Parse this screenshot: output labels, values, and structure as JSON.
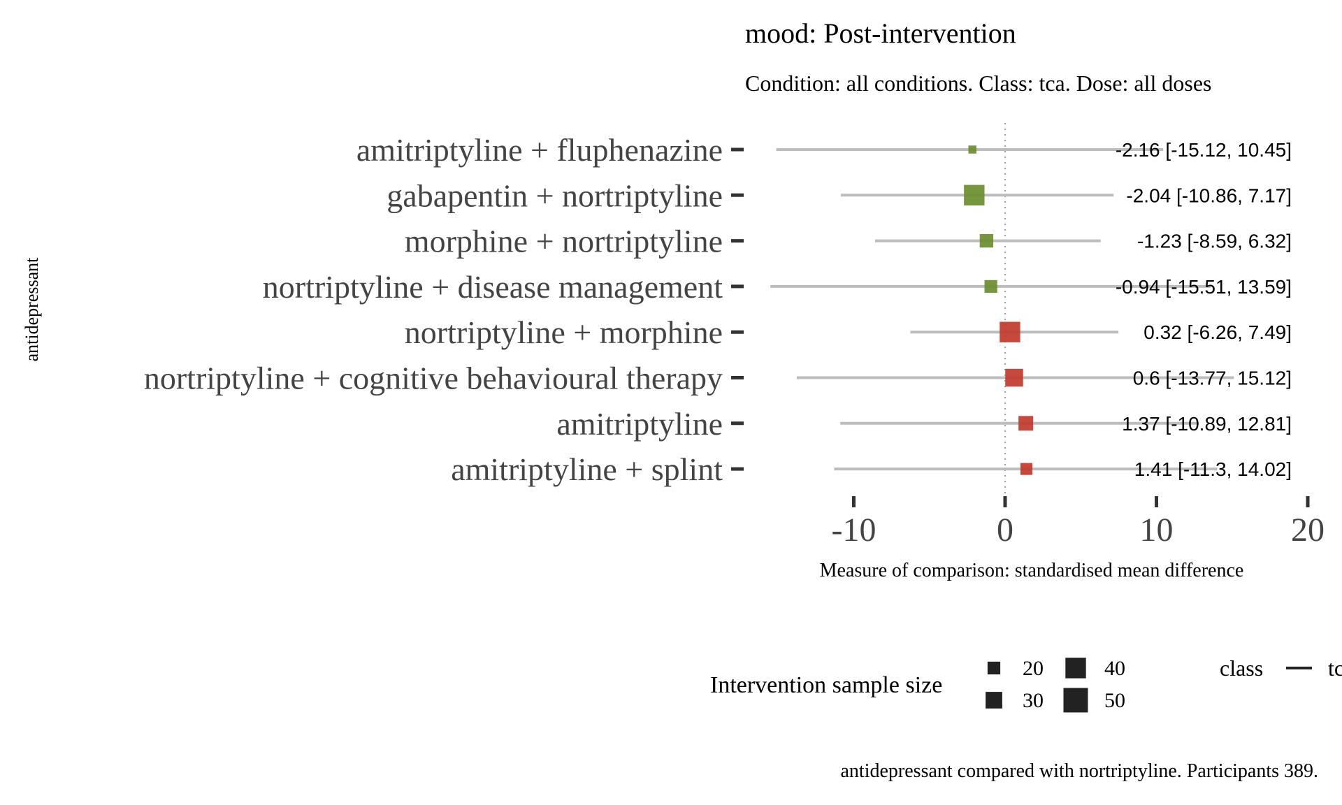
{
  "chart_data": {
    "type": "forest",
    "title": "mood: Post-intervention",
    "subtitle": "Condition: all conditions. Class: tca. Dose: all doses",
    "ylabel": "antidepressant",
    "xlabel": "Measure of comparison: standardised mean difference",
    "caption": "antidepressant compared with nortriptyline. Participants 389.",
    "xlim": [
      -15.5,
      20
    ],
    "xticks": [
      "-10",
      "0",
      "10",
      "20"
    ],
    "reference_line": 0,
    "grid": false,
    "rows": [
      {
        "label": "amitriptyline + fluphenazine",
        "estimate": -2.16,
        "lower": -15.12,
        "upper": 10.45,
        "sample_size": 8,
        "annotation": "-2.16 [-15.12, 10.45]"
      },
      {
        "label": "gabapentin + nortriptyline",
        "estimate": -2.04,
        "lower": -10.86,
        "upper": 7.17,
        "sample_size": 40,
        "annotation": "-2.04 [-10.86, 7.17]"
      },
      {
        "label": "morphine + nortriptyline",
        "estimate": -1.23,
        "lower": -8.59,
        "upper": 6.32,
        "sample_size": 22,
        "annotation": "-1.23 [-8.59, 6.32]"
      },
      {
        "label": "nortriptyline + disease management",
        "estimate": -0.94,
        "lower": -15.51,
        "upper": 13.59,
        "sample_size": 20,
        "annotation": "-0.94 [-15.51, 13.59]"
      },
      {
        "label": "nortriptyline + morphine",
        "estimate": 0.32,
        "lower": -6.26,
        "upper": 7.49,
        "sample_size": 40,
        "annotation": "0.32 [-6.26, 7.49]"
      },
      {
        "label": "nortriptyline + cognitive behavioural therapy",
        "estimate": 0.6,
        "lower": -13.77,
        "upper": 15.12,
        "sample_size": 33,
        "annotation": "0.6 [-13.77, 15.12]"
      },
      {
        "label": "amitriptyline",
        "estimate": 1.37,
        "lower": -10.89,
        "upper": 12.81,
        "sample_size": 25,
        "annotation": "1.37 [-10.89, 12.81]"
      },
      {
        "label": "amitriptyline + splint",
        "estimate": 1.41,
        "lower": -11.3,
        "upper": 14.02,
        "sample_size": 18,
        "annotation": "1.41 [-11.3, 14.02]"
      }
    ],
    "colors": {
      "negative": "#6b8e2e",
      "positive": "#c0392b",
      "ci_line": "#bdbdbd",
      "ref_line": "#9e9e9e"
    },
    "legend": {
      "size_title": "Intervention sample size",
      "size_entries": [
        {
          "label": "20",
          "value": 20
        },
        {
          "label": "30",
          "value": 30
        },
        {
          "label": "40",
          "value": 40
        },
        {
          "label": "50",
          "value": 50
        }
      ],
      "class_title": "class",
      "class_entry": "tc",
      "placement": "bottom"
    }
  }
}
